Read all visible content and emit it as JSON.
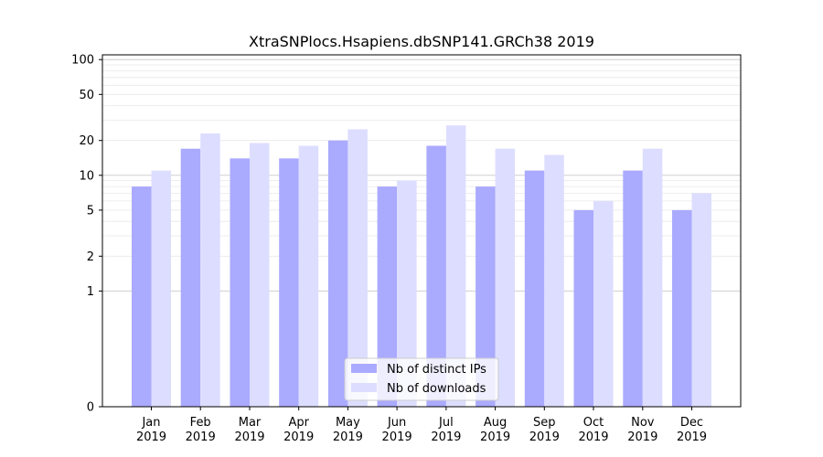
{
  "chart_data": {
    "type": "bar",
    "title": "XtraSNPlocs.Hsapiens.dbSNP141.GRCh38 2019",
    "xlabel": "",
    "ylabel": "",
    "yscale": "symlog",
    "ylim": [
      0,
      110
    ],
    "yticks": [
      0,
      1,
      2,
      5,
      10,
      20,
      50,
      100
    ],
    "ytick_labels": [
      "0",
      "1",
      "2",
      "5",
      "10",
      "20",
      "50",
      "100"
    ],
    "categories": [
      "Jan\n2019",
      "Feb\n2019",
      "Mar\n2019",
      "Apr\n2019",
      "May\n2019",
      "Jun\n2019",
      "Jul\n2019",
      "Aug\n2019",
      "Sep\n2019",
      "Oct\n2019",
      "Nov\n2019",
      "Dec\n2019"
    ],
    "series": [
      {
        "name": "Nb of distinct IPs",
        "color": "#aaaaff",
        "values": [
          8,
          17,
          14,
          14,
          20,
          8,
          18,
          8,
          11,
          5,
          11,
          5
        ]
      },
      {
        "name": "Nb of downloads",
        "color": "#ddddff",
        "values": [
          11,
          23,
          19,
          18,
          25,
          9,
          27,
          17,
          15,
          6,
          17,
          7
        ]
      }
    ],
    "legend_position": "bottom-center",
    "grid": true
  }
}
